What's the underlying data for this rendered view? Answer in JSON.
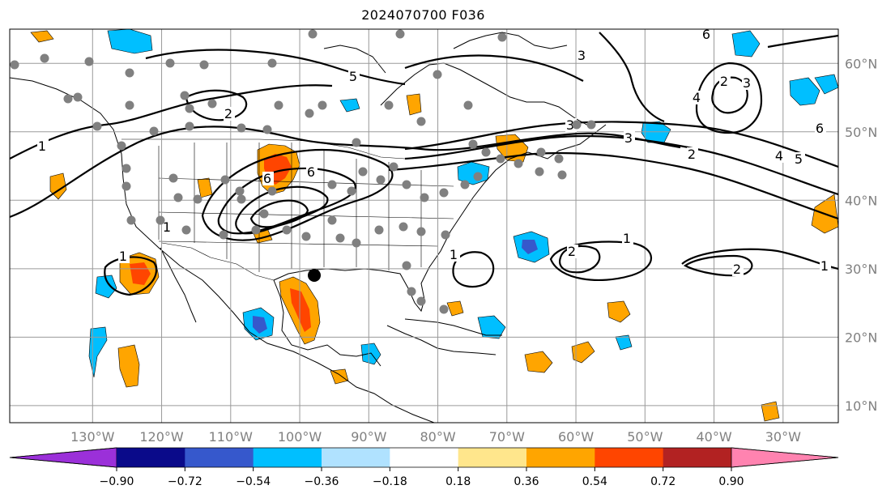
{
  "title": "2024070700 F036",
  "map": {
    "lon_range": [
      -142,
      -22
    ],
    "lat_range": [
      7.5,
      65
    ],
    "lon_ticks": [
      "130°W",
      "120°W",
      "110°W",
      "100°W",
      "90°W",
      "80°W",
      "70°W",
      "60°W",
      "50°W",
      "40°W",
      "30°W"
    ],
    "lat_ticks": [
      "10°N",
      "20°N",
      "30°N",
      "40°N",
      "50°N",
      "60°N"
    ],
    "grid_lines": true
  },
  "colorbar": {
    "labels": [
      "−0.90",
      "−0.72",
      "−0.54",
      "−0.36",
      "−0.18",
      "0.18",
      "0.36",
      "0.54",
      "0.72",
      "0.90"
    ],
    "colors": [
      "#9b30d9",
      "#0a0a8a",
      "#3658cc",
      "#00bfff",
      "#b0e2ff",
      "#ffffff",
      "#ffe68c",
      "#ffa500",
      "#ff4500",
      "#b22222",
      "#ff83b0"
    ],
    "extend": "both"
  },
  "contour_labels": [
    "1",
    "1",
    "1",
    "1",
    "1",
    "1",
    "2",
    "2",
    "2",
    "2",
    "3",
    "3",
    "3",
    "3",
    "4",
    "4",
    "5",
    "5",
    "6",
    "6",
    "6",
    "6",
    "2"
  ],
  "marker_points": 78,
  "highlight_point": "Gulf Coast"
}
